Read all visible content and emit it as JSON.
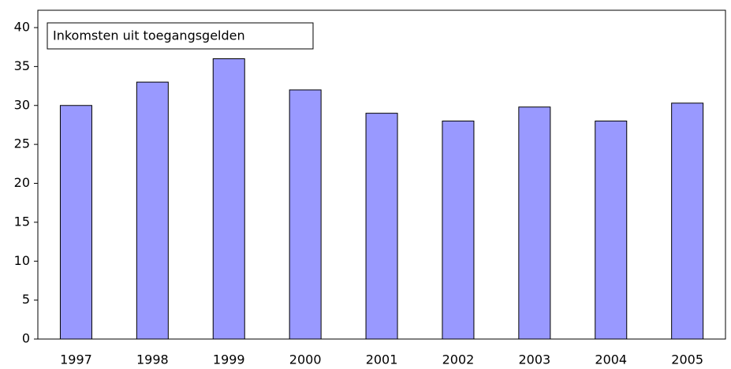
{
  "chart_data": {
    "type": "bar",
    "title": "Inkomsten uit toegangsgelden",
    "categories": [
      "1997",
      "1998",
      "1999",
      "2000",
      "2001",
      "2002",
      "2003",
      "2004",
      "2005"
    ],
    "values": [
      30,
      33,
      36,
      32,
      29,
      28,
      29.8,
      28,
      30.3
    ],
    "color": "#9999ff",
    "ylim": [
      0,
      40
    ],
    "yticks": [
      0,
      5,
      10,
      15,
      20,
      25,
      30,
      35,
      40
    ],
    "grid": false
  }
}
